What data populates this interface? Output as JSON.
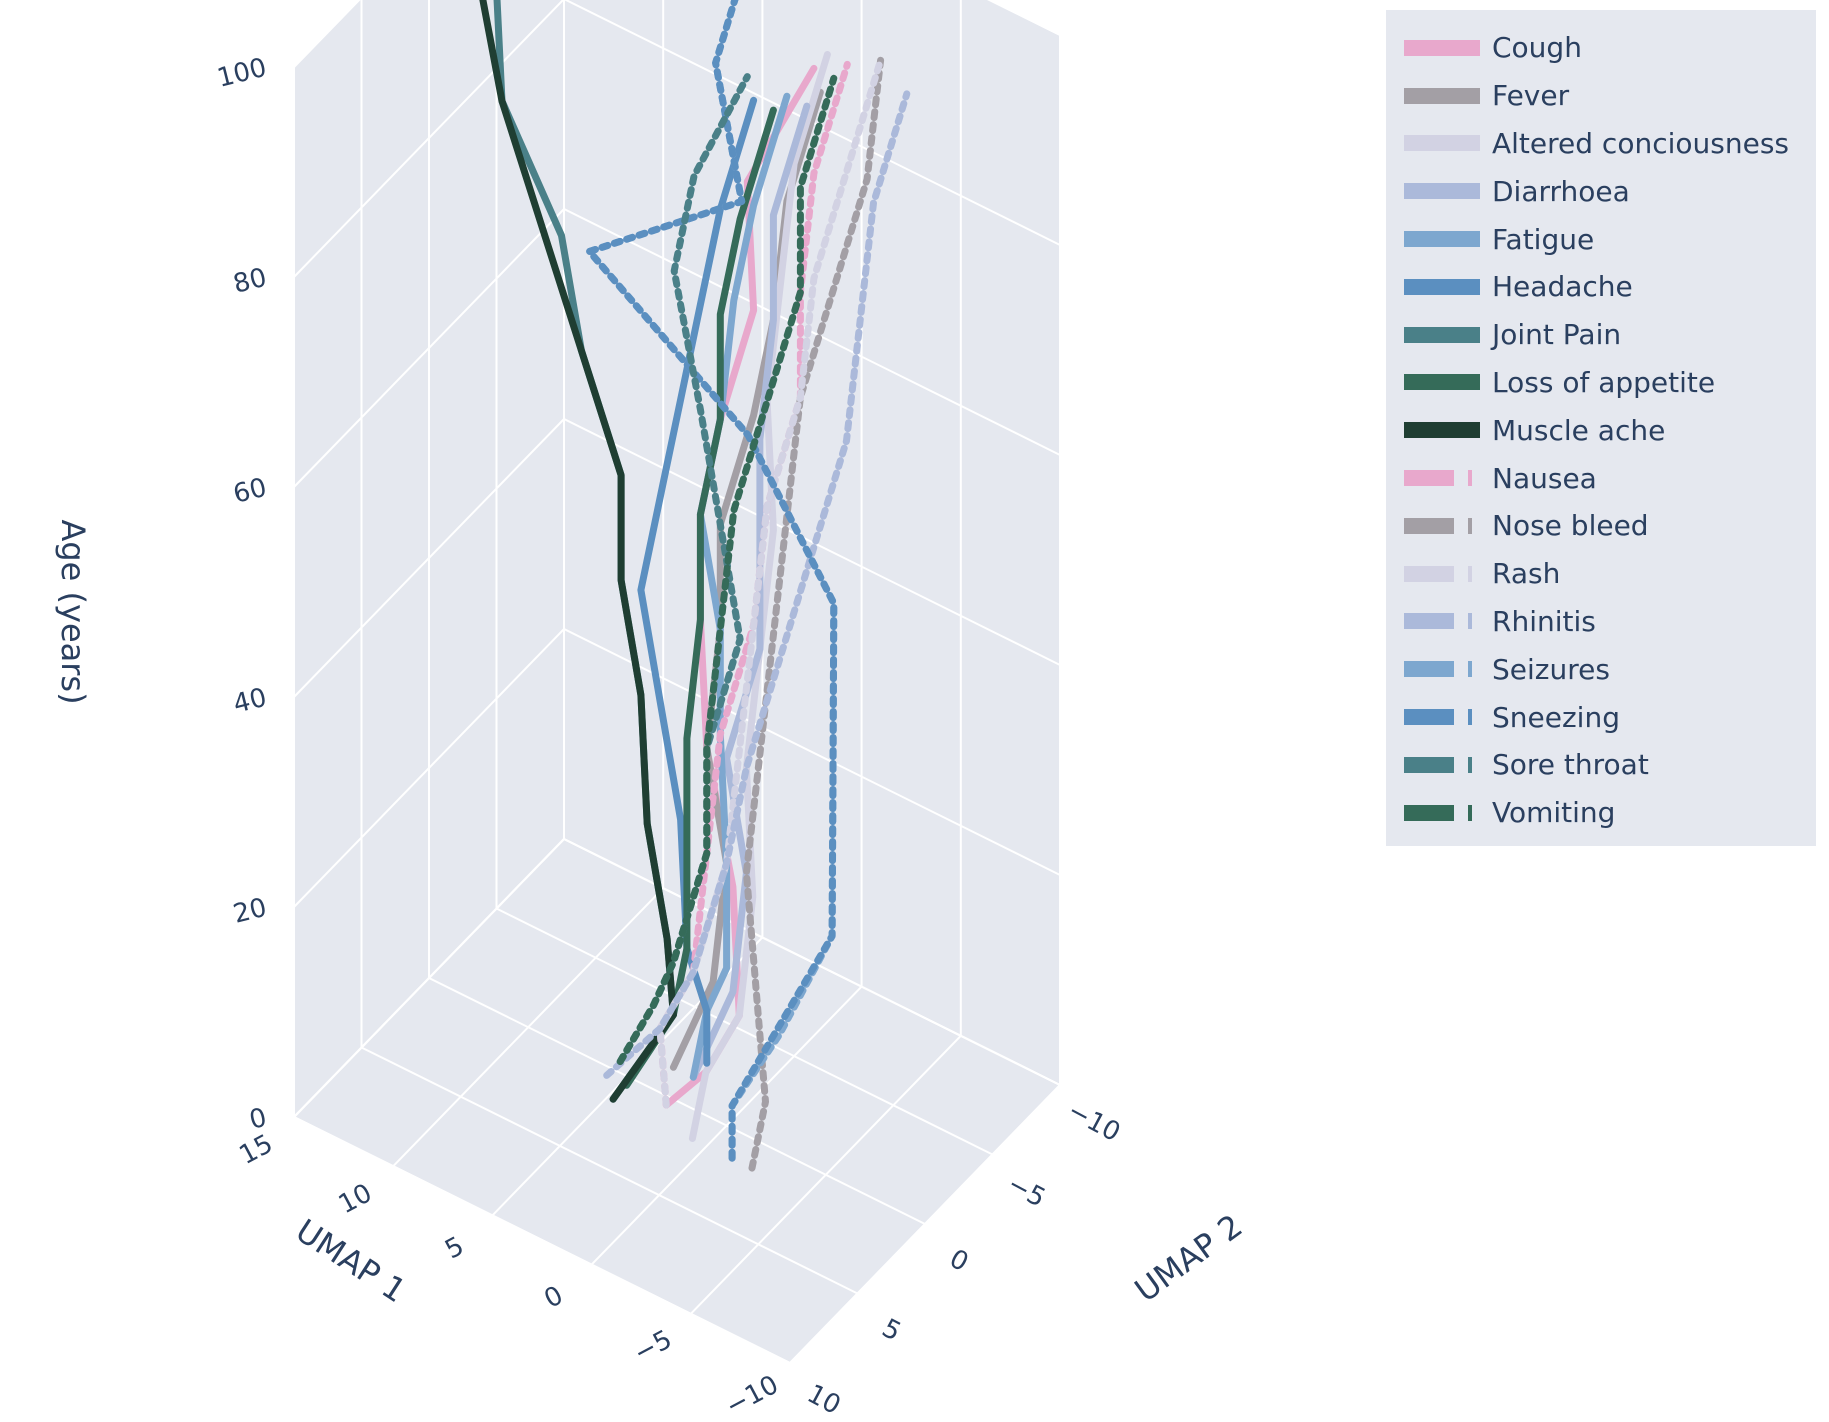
{
  "chart_data": {
    "type": "line",
    "subtype": "3d-line",
    "title": "",
    "axes": {
      "x": {
        "label": "UMAP 1",
        "ticks": [
          15,
          10,
          5,
          0,
          -5,
          -10
        ],
        "range": [
          15,
          -10
        ]
      },
      "y": {
        "label": "UMAP 2",
        "ticks": [
          -10,
          -5,
          0,
          5,
          10
        ],
        "range": [
          -10,
          10
        ]
      },
      "z": {
        "label": "Age (years)",
        "ticks": [
          0,
          20,
          40,
          60,
          80,
          100
        ],
        "range": [
          0,
          100
        ]
      }
    },
    "grid": true,
    "legend_position": "right",
    "z_samples": [
      5,
      10,
      15,
      25,
      35,
      45,
      55,
      65,
      75,
      85,
      95
    ],
    "series": [
      {
        "name": "Cough",
        "dash": "solid",
        "color": "#e8a8cc",
        "x": [
          1,
          -1,
          -2,
          -1,
          1,
          2,
          2,
          1,
          0,
          1,
          -1
        ],
        "y": [
          3,
          3,
          2,
          1,
          0,
          -1,
          -1,
          -1,
          -2,
          -3,
          -5
        ]
      },
      {
        "name": "Fever",
        "dash": "solid",
        "color": "#a39fa5",
        "x": [
          2,
          1,
          0,
          0,
          1,
          1,
          1,
          0,
          -1,
          -1,
          -2
        ],
        "y": [
          1,
          1,
          1,
          0,
          0,
          -1,
          -1,
          -2,
          -2,
          -3,
          -4
        ]
      },
      {
        "name": "Altered conciousness",
        "dash": "solid",
        "color": "#d2d2e3",
        "x": [
          -1,
          -1,
          -2,
          -2,
          -1,
          -1,
          -1,
          0,
          0,
          0,
          -1
        ],
        "y": [
          4,
          3,
          2,
          1,
          0,
          -1,
          -2,
          -3,
          -4,
          -5,
          -6
        ]
      },
      {
        "name": "Diarrhoea",
        "dash": "solid",
        "color": "#abb9da",
        "x": [
          1,
          0,
          -1,
          -1,
          0,
          -1,
          -1,
          -1,
          -1,
          -1,
          -2
        ],
        "y": [
          1,
          1,
          1,
          0,
          0,
          -1,
          -1,
          -1,
          -2,
          -2,
          -3
        ]
      },
      {
        "name": "Fatigue",
        "dash": "solid",
        "color": "#7da7cf",
        "x": [
          1,
          1,
          0,
          0,
          1,
          1,
          2,
          1,
          1,
          0,
          -1
        ],
        "y": [
          1,
          0,
          0,
          0,
          -1,
          -1,
          -1,
          -1,
          -2,
          -2,
          -3
        ]
      },
      {
        "name": "Headache",
        "dash": "solid",
        "color": "#5b8fc0",
        "x": [
          1,
          1,
          2,
          3,
          4,
          5,
          4,
          3,
          2,
          1,
          0
        ],
        "y": [
          0,
          0,
          0,
          -1,
          -1,
          -1,
          -1,
          -1,
          -1,
          -1,
          -2
        ]
      },
      {
        "name": "Joint Pain",
        "dash": "solid",
        "color": "#4a8088",
        "x": [
          3,
          2,
          3,
          4,
          5,
          6,
          6,
          8,
          9,
          12,
          13
        ],
        "y": [
          4,
          1,
          0,
          0,
          -1,
          -1,
          -1,
          -1,
          -1,
          -1,
          -2
        ]
      },
      {
        "name": "Loss of appetite",
        "dash": "solid",
        "color": "#356b59",
        "x": [
          3,
          2,
          2,
          2,
          2,
          2,
          2,
          1,
          1,
          0,
          -1
        ],
        "y": [
          3,
          1,
          0,
          0,
          0,
          -1,
          -1,
          -1,
          -1,
          -1,
          -2
        ]
      },
      {
        "name": "Muscle ache",
        "dash": "solid",
        "color": "#1f3e32",
        "x": [
          3,
          2,
          3,
          4,
          5,
          6,
          6,
          8,
          10,
          12,
          14
        ],
        "y": [
          4,
          1,
          0,
          0,
          -1,
          -1,
          -1,
          -1,
          -1,
          -1,
          -2
        ]
      },
      {
        "name": "Nausea",
        "dash": "dotted",
        "color": "#e8a8cc",
        "x": [
          1,
          2,
          1,
          1,
          1,
          0,
          0,
          -1,
          -1,
          -1,
          -2
        ],
        "y": [
          3,
          2,
          1,
          0,
          -1,
          -2,
          -3,
          -4,
          -4,
          -5,
          -6
        ]
      },
      {
        "name": "Nose bleed",
        "dash": "dotted",
        "color": "#a39fa5",
        "x": [
          -4,
          -4,
          -3,
          -1,
          -1,
          -1,
          -1,
          -1,
          -2,
          -3,
          -3
        ],
        "y": [
          4,
          3,
          2,
          0,
          -1,
          -2,
          -3,
          -4,
          -5,
          -6,
          -7
        ]
      },
      {
        "name": "Rash",
        "dash": "dotted",
        "color": "#d2d2e3",
        "x": [
          1,
          2,
          1,
          0,
          0,
          0,
          0,
          -1,
          -1,
          -2,
          -3
        ],
        "y": [
          3,
          2,
          1,
          0,
          -1,
          -2,
          -3,
          -4,
          -5,
          -6,
          -7
        ]
      },
      {
        "name": "Rhinitis",
        "dash": "dotted",
        "color": "#abb9da",
        "x": [
          4,
          2,
          1,
          0,
          -1,
          -2,
          -3,
          -4,
          -4,
          -4,
          -5
        ],
        "y": [
          3,
          2,
          1,
          0,
          0,
          -1,
          -2,
          -3,
          -4,
          -5,
          -6
        ]
      },
      {
        "name": "Seizures",
        "dash": "dotted",
        "color": "#7da7cf",
        "x": [
          -3,
          -3,
          -4,
          -6,
          -4,
          -2,
          3,
          11,
          4,
          6,
          5
        ],
        "y": [
          4,
          4,
          2,
          1,
          -2,
          -5,
          -6,
          -6,
          -7,
          -8,
          -9
        ]
      },
      {
        "name": "Sneezing",
        "dash": "dotted",
        "color": "#5b8fc0",
        "x": [
          -3,
          -3,
          -4,
          -6,
          -4,
          -2,
          3,
          11,
          4,
          6,
          5
        ],
        "y": [
          4,
          4,
          3,
          1,
          -2,
          -5,
          -6,
          -6,
          -7,
          -8,
          -9
        ]
      },
      {
        "name": "Sore throat",
        "dash": "dotted",
        "color": "#4a8088",
        "x": [
          4,
          3,
          2,
          1,
          1,
          0,
          1,
          2,
          4,
          3,
          1
        ],
        "y": [
          2,
          1,
          1,
          0,
          0,
          -1,
          -1,
          -1,
          -2,
          -2,
          -3
        ]
      },
      {
        "name": "Vomiting",
        "dash": "dotted",
        "color": "#356b59",
        "x": [
          4,
          3,
          2,
          1,
          1,
          1,
          1,
          0,
          -1,
          -1,
          -2
        ],
        "y": [
          2,
          1,
          1,
          0,
          0,
          -1,
          -2,
          -3,
          -4,
          -4,
          -5
        ]
      }
    ]
  }
}
